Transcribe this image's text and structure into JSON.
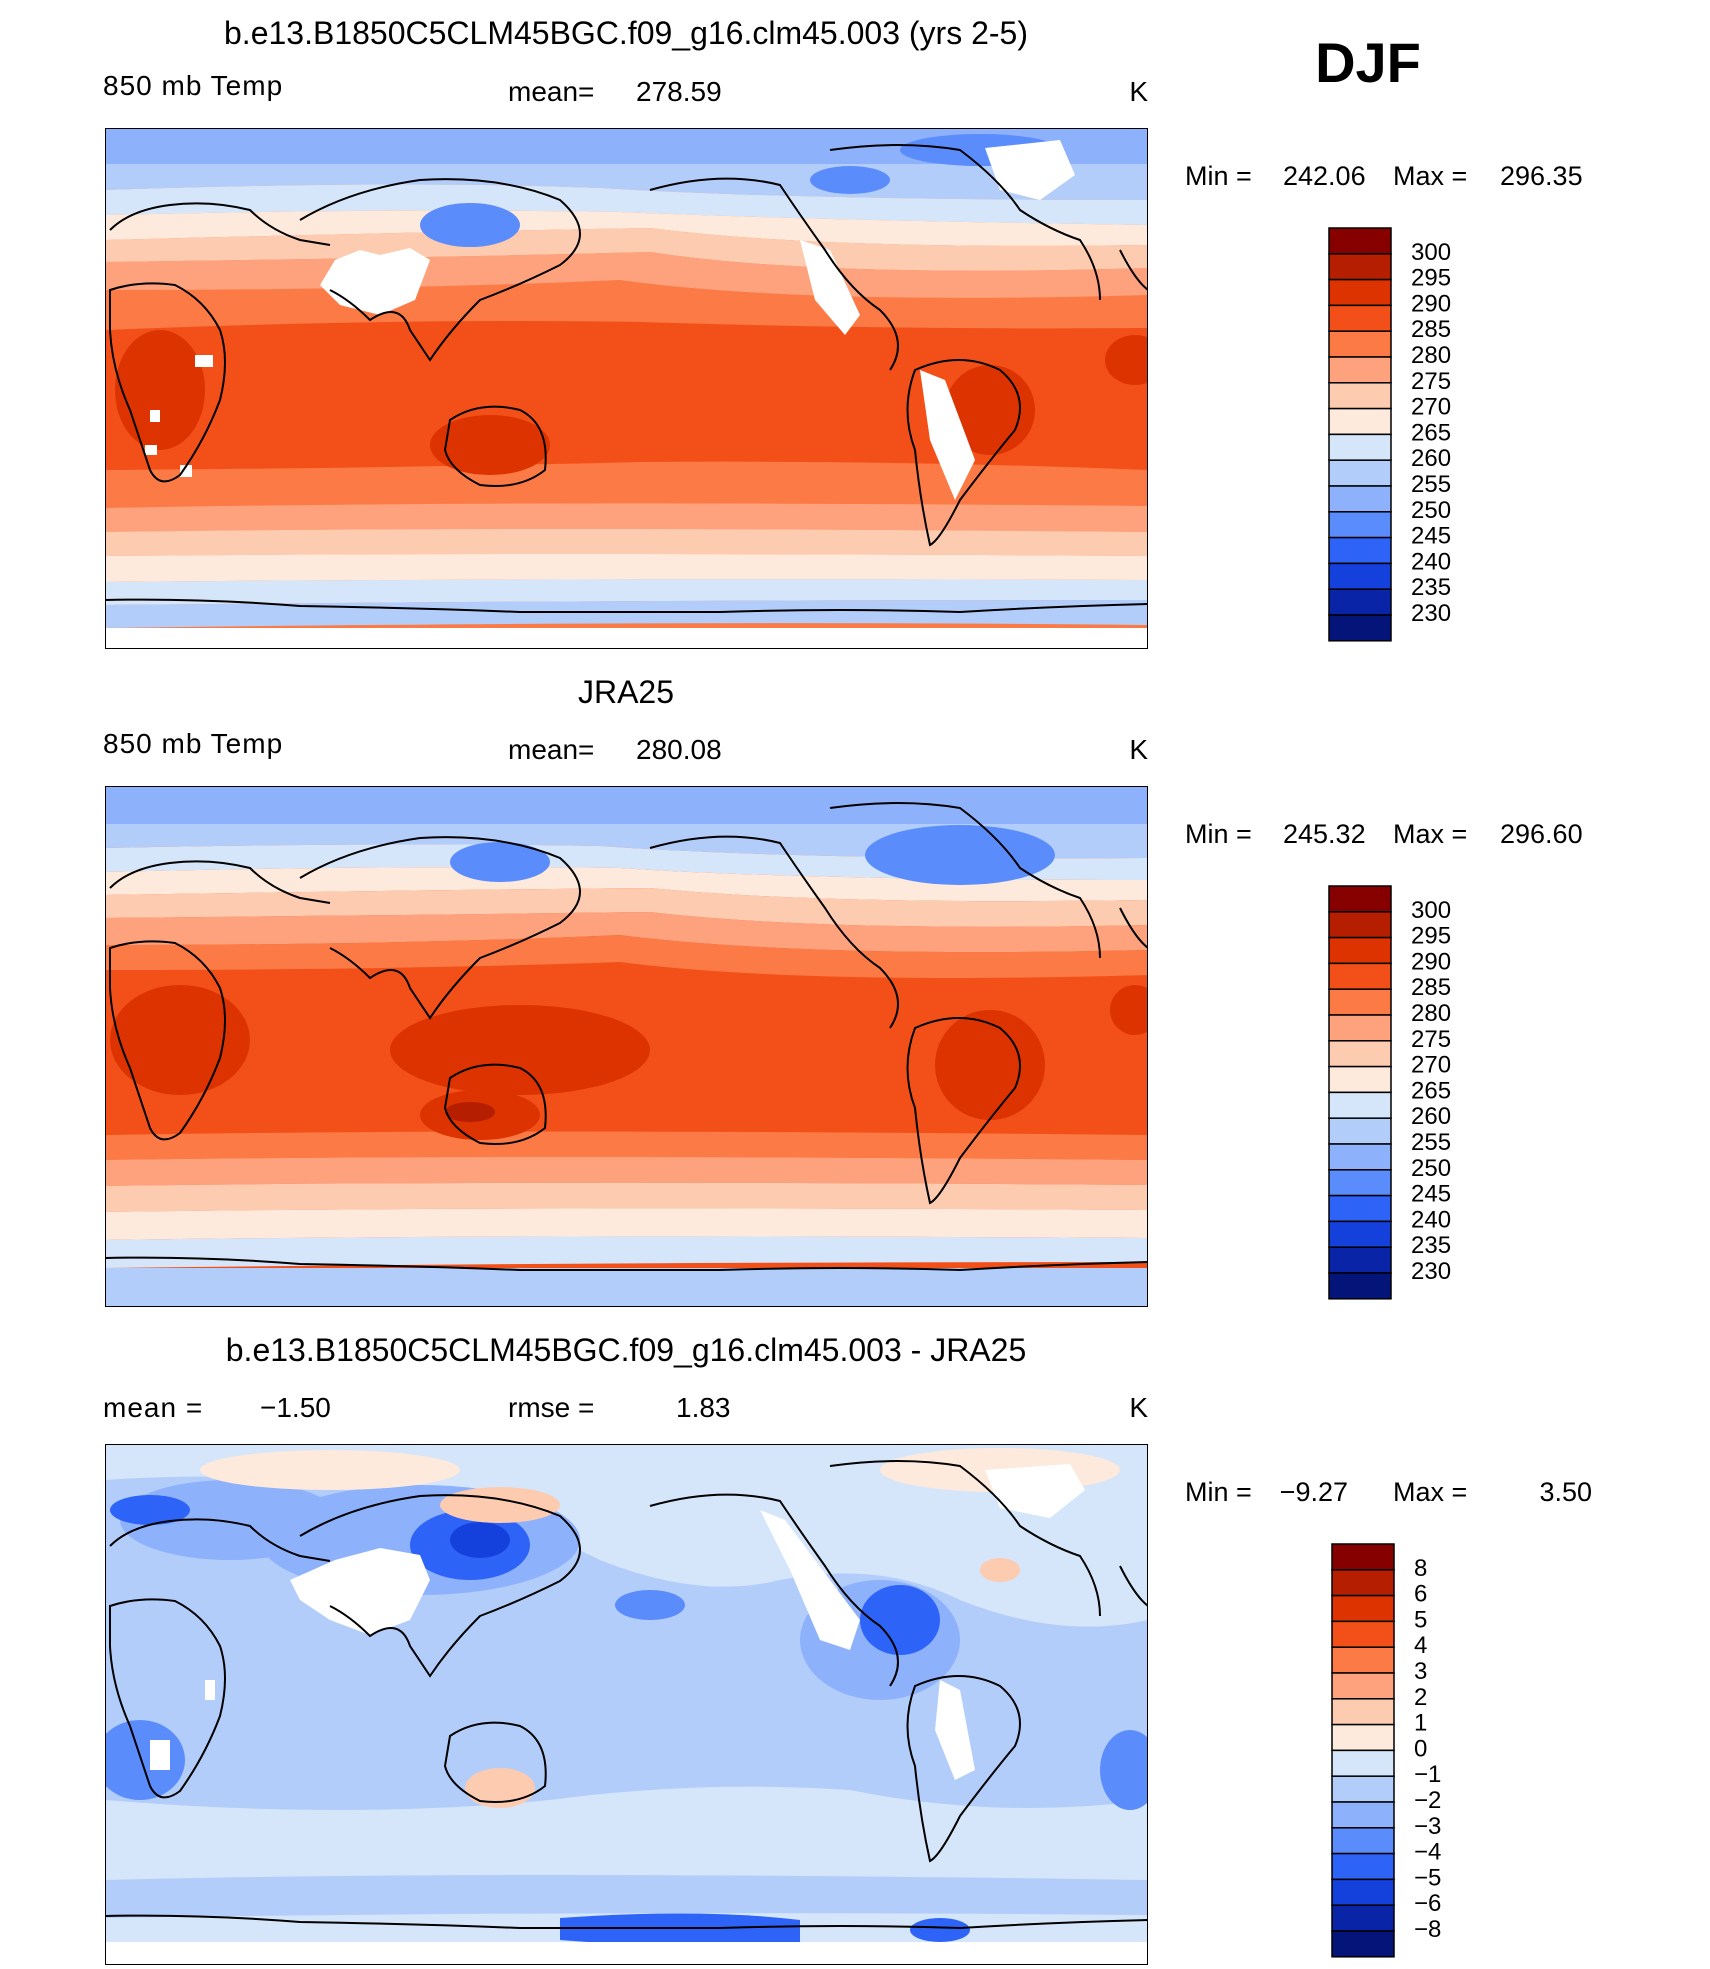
{
  "season": "DJF",
  "chart_data": [
    {
      "type": "heatmap",
      "title": "b.e13.B1850C5CLM45BGC.f09_g16.clm45.003 (yrs 2-5)",
      "variable": "850 mb Temp",
      "mean_label": "mean=",
      "mean_value": "278.59",
      "units": "K",
      "min_label": "Min  =",
      "min_value": "242.06",
      "max_label": "Max  =",
      "max_value": "296.35",
      "colorbar_levels": [
        "300",
        "295",
        "290",
        "285",
        "280",
        "275",
        "270",
        "265",
        "260",
        "255",
        "250",
        "245",
        "240",
        "235",
        "230"
      ],
      "colorbar_colors": [
        "#870000",
        "#b51f00",
        "#dd3300",
        "#f25018",
        "#fb7a45",
        "#fda27d",
        "#fdcbb0",
        "#feeadc",
        "#d5e6fa",
        "#b3cdfb",
        "#8db1fb",
        "#5a8cfb",
        "#2e63f8",
        "#1440dc",
        "#0a24a8",
        "#051479"
      ]
    },
    {
      "type": "heatmap",
      "title": "JRA25",
      "variable": "850 mb Temp",
      "mean_label": "mean=",
      "mean_value": "280.08",
      "units": "K",
      "min_label": "Min  =",
      "min_value": "245.32",
      "max_label": "Max  =",
      "max_value": "296.60",
      "colorbar_levels": [
        "300",
        "295",
        "290",
        "285",
        "280",
        "275",
        "270",
        "265",
        "260",
        "255",
        "250",
        "245",
        "240",
        "235",
        "230"
      ],
      "colorbar_colors": [
        "#870000",
        "#b51f00",
        "#dd3300",
        "#f25018",
        "#fb7a45",
        "#fda27d",
        "#fdcbb0",
        "#feeadc",
        "#d5e6fa",
        "#b3cdfb",
        "#8db1fb",
        "#5a8cfb",
        "#2e63f8",
        "#1440dc",
        "#0a24a8",
        "#051479"
      ]
    },
    {
      "type": "heatmap",
      "title": "b.e13.B1850C5CLM45BGC.f09_g16.clm45.003 - JRA25",
      "mean_label": "mean =",
      "mean_value": "−1.50",
      "rmse_label": "rmse =",
      "rmse_value": "1.83",
      "units": "K",
      "min_label": "Min  =",
      "min_value": "−9.27",
      "max_label": "Max  =",
      "max_value": "3.50",
      "colorbar_levels": [
        "8",
        "6",
        "5",
        "4",
        "3",
        "2",
        "1",
        "0",
        "−1",
        "−2",
        "−3",
        "−4",
        "−5",
        "−6",
        "−8"
      ],
      "colorbar_colors": [
        "#870000",
        "#b51f00",
        "#dd3300",
        "#f25018",
        "#fb7a45",
        "#fda27d",
        "#fdcbb0",
        "#feeadc",
        "#d5e6fa",
        "#b3cdfb",
        "#8db1fb",
        "#5a8cfb",
        "#2e63f8",
        "#1440dc",
        "#0a24a8",
        "#051479"
      ]
    }
  ]
}
